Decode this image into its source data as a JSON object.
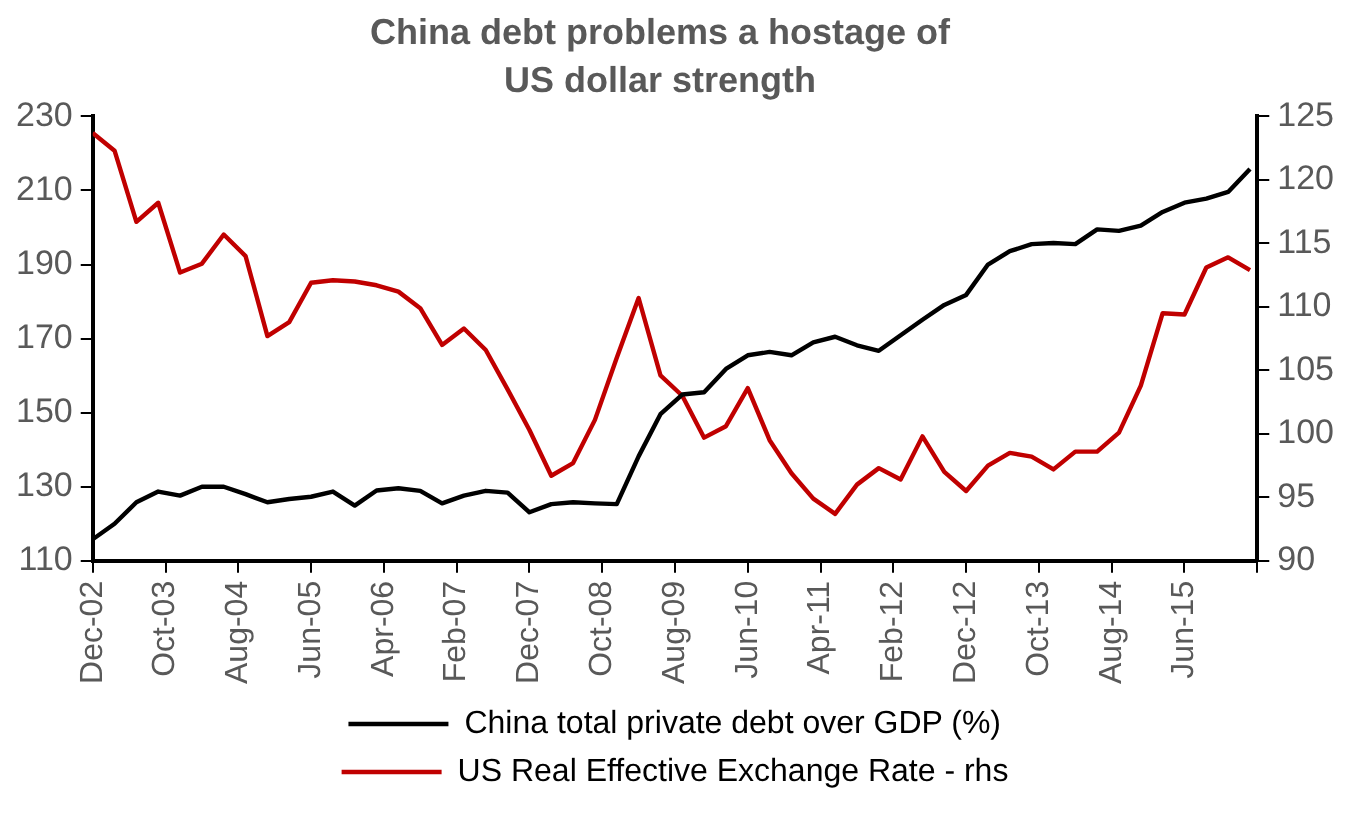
{
  "chart_data": {
    "type": "line",
    "title": "China debt problems a hostage of US dollar strength",
    "x": [
      "2002-12",
      "2003-03",
      "2003-06",
      "2003-09",
      "2003-12",
      "2004-03",
      "2004-06",
      "2004-09",
      "2004-12",
      "2005-03",
      "2005-06",
      "2005-09",
      "2005-12",
      "2006-03",
      "2006-06",
      "2006-09",
      "2006-12",
      "2007-03",
      "2007-06",
      "2007-09",
      "2007-12",
      "2008-03",
      "2008-06",
      "2008-09",
      "2008-12",
      "2009-03",
      "2009-06",
      "2009-09",
      "2009-12",
      "2010-03",
      "2010-06",
      "2010-09",
      "2010-12",
      "2011-03",
      "2011-06",
      "2011-09",
      "2011-12",
      "2012-03",
      "2012-06",
      "2012-09",
      "2012-12",
      "2013-03",
      "2013-06",
      "2013-09",
      "2013-12",
      "2014-03",
      "2014-06",
      "2014-09",
      "2014-12",
      "2015-03",
      "2015-06",
      "2015-09",
      "2015-12",
      "2016-03"
    ],
    "series": [
      {
        "name": "China total private debt over GDP (%)",
        "color": "#000000",
        "values": [
          115.8,
          120,
          125.8,
          128.7,
          127.6,
          130,
          130,
          128,
          125.8,
          126.7,
          127.3,
          128.7,
          124.9,
          129,
          129.6,
          128.9,
          125.5,
          127.6,
          128.9,
          128.4,
          123.1,
          125.3,
          125.8,
          125.5,
          125.3,
          138.2,
          149.6,
          154.9,
          155.5,
          161.8,
          165.5,
          166.4,
          165.5,
          169,
          170.5,
          168.2,
          166.7,
          170.9,
          175.1,
          179.1,
          181.8,
          190,
          193.6,
          195.5,
          195.8,
          195.5,
          199.5,
          199.1,
          200.5,
          204.2,
          206.7,
          207.8,
          209.6,
          215.8
        ]
      },
      {
        "name": "US Real Effective Exchange Rate - rhs",
        "color": "#c00000",
        "axis": "y2",
        "values": [
          123.7,
          122.3,
          116.7,
          118.2,
          112.7,
          113.4,
          115.7,
          114,
          107.7,
          108.8,
          111.9,
          112.1,
          112,
          111.7,
          111.2,
          109.9,
          107,
          108.3,
          106.6,
          103.5,
          100.3,
          96.7,
          97.7,
          101.1,
          106,
          110.7,
          104.6,
          103,
          99.7,
          100.6,
          103.6,
          99.5,
          96.9,
          94.9,
          93.7,
          96,
          97.3,
          96.4,
          99.8,
          97,
          95.5,
          97.5,
          98.5,
          98.2,
          97.2,
          98.6,
          98.6,
          100.1,
          103.8,
          109.5,
          109.4,
          113.1,
          113.9,
          112.9
        ]
      }
    ],
    "xlim": [
      "2002-12",
      "2016-04"
    ],
    "xticks": [
      {
        "value": "2002-12",
        "label": "Dec-02"
      },
      {
        "value": "2003-10",
        "label": "Oct-03"
      },
      {
        "value": "2004-08",
        "label": "Aug-04"
      },
      {
        "value": "2005-06",
        "label": "Jun-05"
      },
      {
        "value": "2006-04",
        "label": "Apr-06"
      },
      {
        "value": "2007-02",
        "label": "Feb-07"
      },
      {
        "value": "2007-12",
        "label": "Dec-07"
      },
      {
        "value": "2008-10",
        "label": "Oct-08"
      },
      {
        "value": "2009-08",
        "label": "Aug-09"
      },
      {
        "value": "2010-06",
        "label": "Jun-10"
      },
      {
        "value": "2011-04",
        "label": "Apr-11"
      },
      {
        "value": "2012-02",
        "label": "Feb-12"
      },
      {
        "value": "2012-12",
        "label": "Dec-12"
      },
      {
        "value": "2013-10",
        "label": "Oct-13"
      },
      {
        "value": "2014-08",
        "label": "Aug-14"
      },
      {
        "value": "2015-06",
        "label": "Jun-15"
      },
      {
        "value": "2016-04",
        "label": null
      }
    ],
    "ylim": [
      110,
      230
    ],
    "yticks": [
      110,
      130,
      150,
      170,
      190,
      210,
      230
    ],
    "y2lim": [
      90,
      125
    ],
    "y2ticks": [
      90,
      95,
      100,
      105,
      110,
      115,
      120,
      125
    ],
    "grid": false,
    "legend": "bottom",
    "marker": "none",
    "line_style": "solid"
  }
}
